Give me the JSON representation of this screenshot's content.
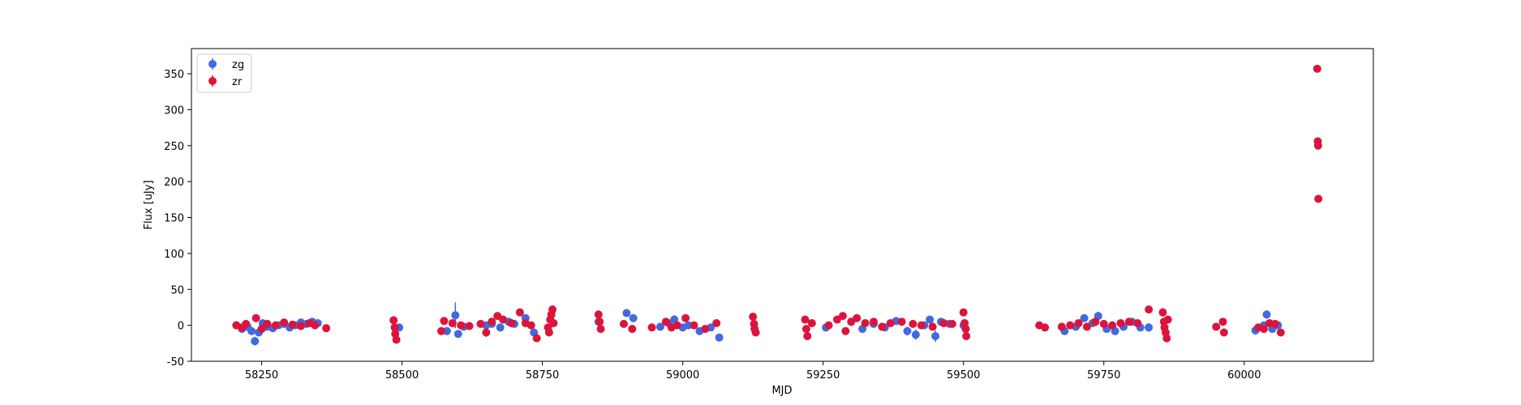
{
  "chart_data": {
    "type": "scatter",
    "title": "",
    "xlabel": "MJD",
    "ylabel": "Flux [uJy]",
    "xlim": [
      58125,
      60230
    ],
    "ylim": [
      -50,
      385
    ],
    "xticks": [
      58250,
      58500,
      58750,
      59000,
      59250,
      59500,
      59750,
      60000
    ],
    "yticks": [
      -50,
      0,
      50,
      100,
      150,
      200,
      250,
      300,
      350
    ],
    "grid": false,
    "legend": "top-left",
    "error_bars": true,
    "series": [
      {
        "name": "zg",
        "color": "#4169e1",
        "points": [
          [
            58205,
            0,
            2
          ],
          [
            58215,
            -5,
            3
          ],
          [
            58225,
            -2,
            3
          ],
          [
            58232,
            -8,
            5
          ],
          [
            58238,
            -22,
            6
          ],
          [
            58245,
            -10,
            5
          ],
          [
            58252,
            3,
            3
          ],
          [
            58260,
            -2,
            3
          ],
          [
            58270,
            -4,
            4
          ],
          [
            58280,
            0,
            3
          ],
          [
            58290,
            2,
            4
          ],
          [
            58300,
            -3,
            3
          ],
          [
            58310,
            0,
            4
          ],
          [
            58320,
            4,
            3
          ],
          [
            58330,
            2,
            3
          ],
          [
            58340,
            5,
            3
          ],
          [
            58350,
            3,
            3
          ],
          [
            58495,
            -3,
            4
          ],
          [
            58580,
            -8,
            4
          ],
          [
            58590,
            3,
            5
          ],
          [
            58595,
            14,
            18
          ],
          [
            58600,
            -12,
            5
          ],
          [
            58610,
            -2,
            4
          ],
          [
            58650,
            0,
            5
          ],
          [
            58660,
            2,
            4
          ],
          [
            58675,
            -3,
            5
          ],
          [
            58690,
            5,
            4
          ],
          [
            58700,
            2,
            5
          ],
          [
            58720,
            10,
            5
          ],
          [
            58735,
            -10,
            4
          ],
          [
            58850,
            5,
            4
          ],
          [
            58900,
            17,
            5
          ],
          [
            58912,
            10,
            5
          ],
          [
            58960,
            -2,
            3
          ],
          [
            58975,
            3,
            4
          ],
          [
            58985,
            8,
            6
          ],
          [
            59000,
            -3,
            4
          ],
          [
            59010,
            0,
            4
          ],
          [
            59030,
            -8,
            4
          ],
          [
            59050,
            -3,
            4
          ],
          [
            59065,
            -17,
            5
          ],
          [
            59255,
            -3,
            3
          ],
          [
            59300,
            5,
            6
          ],
          [
            59320,
            -5,
            4
          ],
          [
            59340,
            2,
            4
          ],
          [
            59360,
            -3,
            5
          ],
          [
            59380,
            6,
            5
          ],
          [
            59400,
            -8,
            6
          ],
          [
            59415,
            -13,
            7
          ],
          [
            59430,
            0,
            5
          ],
          [
            59440,
            8,
            5
          ],
          [
            59450,
            -15,
            8
          ],
          [
            59460,
            5,
            5
          ],
          [
            59475,
            2,
            4
          ],
          [
            59500,
            0,
            3
          ],
          [
            59680,
            -8,
            4
          ],
          [
            59700,
            -2,
            3
          ],
          [
            59715,
            10,
            5
          ],
          [
            59730,
            3,
            5
          ],
          [
            59740,
            13,
            6
          ],
          [
            59755,
            -5,
            4
          ],
          [
            59770,
            -8,
            4
          ],
          [
            59785,
            -2,
            4
          ],
          [
            59800,
            5,
            5
          ],
          [
            59815,
            -3,
            4
          ],
          [
            59830,
            -3,
            6
          ],
          [
            60020,
            -7,
            6
          ],
          [
            60035,
            0,
            5
          ],
          [
            60040,
            15,
            6
          ],
          [
            60050,
            -5,
            4
          ],
          [
            60060,
            0,
            4
          ]
        ]
      },
      {
        "name": "zr",
        "color": "#dc143c",
        "points": [
          [
            58205,
            0,
            2
          ],
          [
            58215,
            -3,
            2
          ],
          [
            58222,
            2,
            3
          ],
          [
            58240,
            10,
            4
          ],
          [
            58250,
            -5,
            3
          ],
          [
            58260,
            2,
            3
          ],
          [
            58275,
            0,
            3
          ],
          [
            58290,
            4,
            3
          ],
          [
            58305,
            1,
            3
          ],
          [
            58320,
            -1,
            3
          ],
          [
            58335,
            3,
            3
          ],
          [
            58345,
            0,
            3
          ],
          [
            58365,
            -4,
            2
          ],
          [
            58485,
            7,
            4
          ],
          [
            58487,
            -3,
            4
          ],
          [
            58488,
            -12,
            5
          ],
          [
            58490,
            -20,
            5
          ],
          [
            58570,
            -8,
            4
          ],
          [
            58575,
            6,
            3
          ],
          [
            58590,
            3,
            3
          ],
          [
            58605,
            0,
            3
          ],
          [
            58620,
            -1,
            3
          ],
          [
            58640,
            2,
            3
          ],
          [
            58650,
            -10,
            6
          ],
          [
            58660,
            5,
            4
          ],
          [
            58670,
            13,
            4
          ],
          [
            58680,
            8,
            4
          ],
          [
            58695,
            3,
            4
          ],
          [
            58710,
            18,
            4
          ],
          [
            58720,
            3,
            4
          ],
          [
            58730,
            0,
            4
          ],
          [
            58740,
            -18,
            5
          ],
          [
            58760,
            -3,
            5
          ],
          [
            58762,
            -10,
            5
          ],
          [
            58764,
            8,
            5
          ],
          [
            58766,
            15,
            5
          ],
          [
            58768,
            22,
            6
          ],
          [
            58770,
            3,
            4
          ],
          [
            58850,
            15,
            6
          ],
          [
            58852,
            5,
            4
          ],
          [
            58854,
            -5,
            4
          ],
          [
            58895,
            2,
            3
          ],
          [
            58910,
            -5,
            3
          ],
          [
            58945,
            -3,
            3
          ],
          [
            58970,
            5,
            3
          ],
          [
            58980,
            -3,
            4
          ],
          [
            58990,
            0,
            4
          ],
          [
            59005,
            10,
            4
          ],
          [
            59020,
            0,
            3
          ],
          [
            59040,
            -5,
            4
          ],
          [
            59060,
            3,
            4
          ],
          [
            59125,
            12,
            4
          ],
          [
            59127,
            2,
            4
          ],
          [
            59128,
            -5,
            4
          ],
          [
            59130,
            -10,
            4
          ],
          [
            59218,
            8,
            5
          ],
          [
            59220,
            -5,
            5
          ],
          [
            59222,
            -15,
            5
          ],
          [
            59230,
            3,
            4
          ],
          [
            59260,
            0,
            4
          ],
          [
            59275,
            8,
            4
          ],
          [
            59285,
            13,
            5
          ],
          [
            59290,
            -8,
            4
          ],
          [
            59300,
            5,
            4
          ],
          [
            59310,
            10,
            5
          ],
          [
            59325,
            3,
            4
          ],
          [
            59340,
            5,
            4
          ],
          [
            59355,
            -2,
            4
          ],
          [
            59370,
            3,
            4
          ],
          [
            59390,
            5,
            4
          ],
          [
            59410,
            2,
            4
          ],
          [
            59425,
            0,
            4
          ],
          [
            59445,
            -2,
            4
          ],
          [
            59465,
            3,
            4
          ],
          [
            59480,
            2,
            3
          ],
          [
            59500,
            18,
            4
          ],
          [
            59502,
            3,
            4
          ],
          [
            59504,
            -5,
            4
          ],
          [
            59505,
            -15,
            5
          ],
          [
            59635,
            0,
            3
          ],
          [
            59645,
            -3,
            3
          ],
          [
            59675,
            -2,
            3
          ],
          [
            59690,
            0,
            3
          ],
          [
            59705,
            3,
            4
          ],
          [
            59720,
            -2,
            4
          ],
          [
            59735,
            5,
            4
          ],
          [
            59750,
            2,
            4
          ],
          [
            59765,
            0,
            4
          ],
          [
            59780,
            3,
            4
          ],
          [
            59795,
            5,
            4
          ],
          [
            59810,
            3,
            4
          ],
          [
            59830,
            22,
            5
          ],
          [
            59855,
            18,
            6
          ],
          [
            59857,
            5,
            5
          ],
          [
            59858,
            -3,
            5
          ],
          [
            59860,
            -10,
            6
          ],
          [
            59862,
            -18,
            6
          ],
          [
            59864,
            8,
            5
          ],
          [
            59950,
            -2,
            3
          ],
          [
            59962,
            5,
            3
          ],
          [
            59964,
            -10,
            3
          ],
          [
            60025,
            -3,
            3
          ],
          [
            60035,
            -5,
            3
          ],
          [
            60045,
            3,
            3
          ],
          [
            60055,
            2,
            3
          ],
          [
            60065,
            -10,
            3
          ],
          [
            60130,
            357,
            3
          ],
          [
            60131,
            256,
            3
          ],
          [
            60131.5,
            250,
            3
          ],
          [
            60132,
            176,
            3
          ]
        ]
      }
    ]
  }
}
